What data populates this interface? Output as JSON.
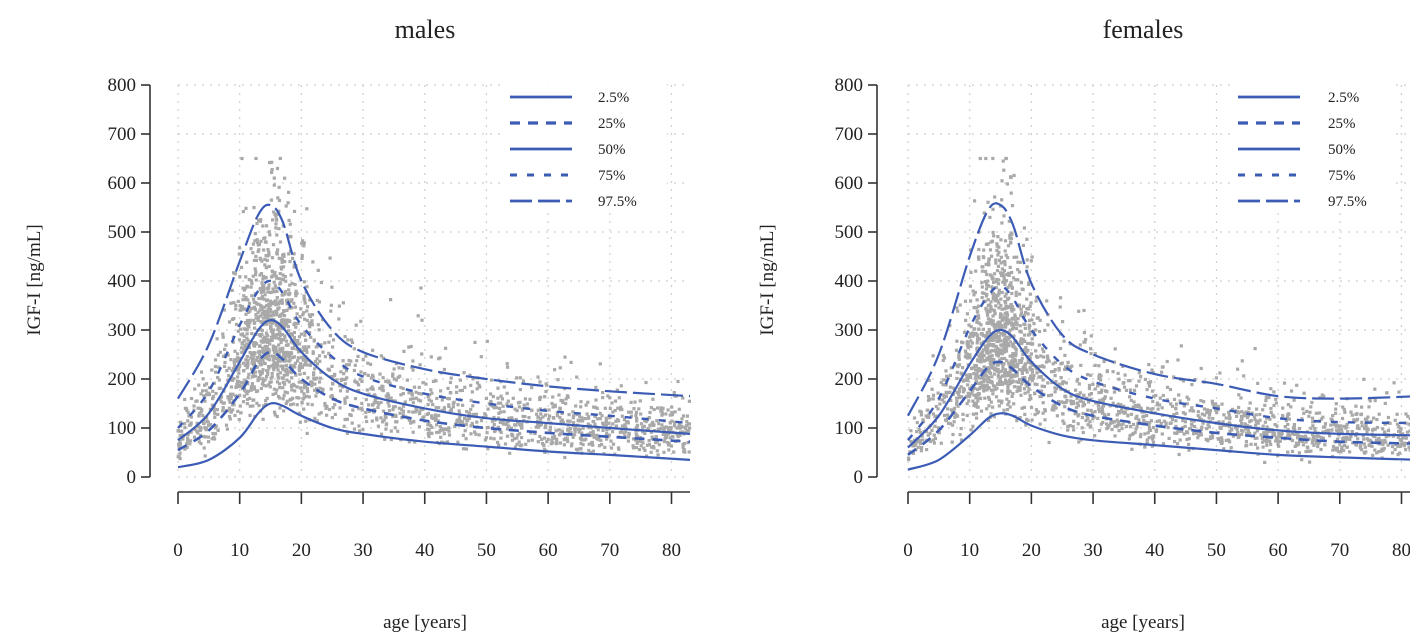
{
  "chart_data": [
    {
      "type": "scatter",
      "title": "males",
      "xlabel": "age [years]",
      "ylabel": "IGF-I [ng/mL]",
      "xlim": [
        0,
        83
      ],
      "ylim": [
        0,
        800
      ],
      "xticks": [
        "0",
        "10",
        "20",
        "30",
        "40",
        "50",
        "60",
        "70",
        "80"
      ],
      "yticks": [
        "0",
        "100",
        "200",
        "300",
        "400",
        "500",
        "600",
        "700",
        "800"
      ],
      "grid": true,
      "legend_position": "top-right",
      "point_color": "#a9a9a9",
      "line_color": "#3b5bb5",
      "series": [
        {
          "name": "2.5%",
          "x": [
            0,
            5,
            10,
            13,
            15,
            17,
            20,
            25,
            30,
            40,
            50,
            60,
            70,
            83
          ],
          "y": [
            20,
            35,
            80,
            130,
            150,
            145,
            125,
            100,
            88,
            72,
            62,
            52,
            45,
            35
          ]
        },
        {
          "name": "25%",
          "x": [
            0,
            5,
            10,
            13,
            15,
            17,
            20,
            25,
            30,
            40,
            50,
            60,
            70,
            83
          ],
          "y": [
            55,
            95,
            170,
            235,
            255,
            240,
            200,
            160,
            140,
            115,
            100,
            90,
            82,
            72
          ]
        },
        {
          "name": "50%",
          "x": [
            0,
            5,
            10,
            13,
            15,
            17,
            20,
            25,
            30,
            40,
            50,
            60,
            70,
            83
          ],
          "y": [
            75,
            130,
            235,
            300,
            320,
            305,
            255,
            200,
            170,
            140,
            120,
            110,
            100,
            88
          ]
        },
        {
          "name": "75%",
          "x": [
            0,
            5,
            10,
            13,
            15,
            17,
            20,
            25,
            30,
            40,
            50,
            60,
            70,
            83
          ],
          "y": [
            100,
            175,
            310,
            380,
            400,
            375,
            310,
            245,
            205,
            170,
            150,
            135,
            125,
            110
          ]
        },
        {
          "name": "97.5%",
          "x": [
            0,
            5,
            10,
            13,
            15,
            17,
            20,
            25,
            30,
            40,
            50,
            60,
            70,
            83
          ],
          "y": [
            160,
            270,
            440,
            535,
            555,
            520,
            400,
            300,
            255,
            220,
            200,
            185,
            175,
            165
          ]
        }
      ],
      "cloud_median": [
        [
          0,
          75
        ],
        [
          5,
          130
        ],
        [
          10,
          235
        ],
        [
          13,
          300
        ],
        [
          15,
          320
        ],
        [
          17,
          305
        ],
        [
          20,
          255
        ],
        [
          25,
          200
        ],
        [
          30,
          170
        ],
        [
          40,
          140
        ],
        [
          50,
          120
        ],
        [
          60,
          110
        ],
        [
          70,
          100
        ],
        [
          83,
          88
        ]
      ],
      "cloud_points": 2200
    },
    {
      "type": "scatter",
      "title": "females",
      "xlabel": "age [years]",
      "ylabel": "IGF-I [ng/mL]",
      "xlim": [
        0,
        83
      ],
      "ylim": [
        0,
        800
      ],
      "xticks": [
        "0",
        "10",
        "20",
        "30",
        "40",
        "50",
        "60",
        "70",
        "80"
      ],
      "yticks": [
        "0",
        "100",
        "200",
        "300",
        "400",
        "500",
        "600",
        "700",
        "800"
      ],
      "grid": true,
      "legend_position": "top-right",
      "point_color": "#a9a9a9",
      "line_color": "#3b5bb5",
      "series": [
        {
          "name": "2.5%",
          "x": [
            0,
            5,
            10,
            13,
            15,
            17,
            20,
            25,
            30,
            40,
            50,
            60,
            70,
            83
          ],
          "y": [
            15,
            35,
            85,
            120,
            130,
            125,
            105,
            85,
            75,
            65,
            55,
            45,
            40,
            35
          ]
        },
        {
          "name": "25%",
          "x": [
            0,
            5,
            10,
            13,
            15,
            17,
            20,
            25,
            30,
            40,
            50,
            60,
            70,
            83
          ],
          "y": [
            45,
            95,
            175,
            225,
            235,
            220,
            185,
            145,
            125,
            105,
            90,
            80,
            72,
            68
          ]
        },
        {
          "name": "50%",
          "x": [
            0,
            5,
            10,
            13,
            15,
            17,
            20,
            25,
            30,
            40,
            50,
            60,
            70,
            83
          ],
          "y": [
            60,
            125,
            230,
            285,
            300,
            285,
            235,
            180,
            155,
            130,
            110,
            95,
            88,
            85
          ]
        },
        {
          "name": "75%",
          "x": [
            0,
            5,
            10,
            13,
            15,
            17,
            20,
            25,
            30,
            40,
            50,
            60,
            70,
            83
          ],
          "y": [
            75,
            160,
            305,
            370,
            390,
            365,
            300,
            230,
            195,
            160,
            140,
            120,
            112,
            110
          ]
        },
        {
          "name": "97.5%",
          "x": [
            0,
            5,
            10,
            13,
            15,
            17,
            20,
            25,
            30,
            40,
            50,
            60,
            70,
            83
          ],
          "y": [
            125,
            250,
            450,
            545,
            555,
            515,
            395,
            290,
            250,
            210,
            190,
            165,
            160,
            165
          ]
        }
      ],
      "cloud_median": [
        [
          0,
          60
        ],
        [
          5,
          125
        ],
        [
          10,
          230
        ],
        [
          13,
          285
        ],
        [
          15,
          300
        ],
        [
          17,
          285
        ],
        [
          20,
          235
        ],
        [
          25,
          180
        ],
        [
          30,
          155
        ],
        [
          40,
          130
        ],
        [
          50,
          110
        ],
        [
          60,
          95
        ],
        [
          70,
          88
        ],
        [
          83,
          85
        ]
      ],
      "cloud_points": 2200
    }
  ]
}
